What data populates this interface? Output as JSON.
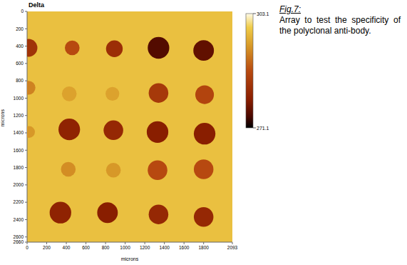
{
  "chart_data": {
    "type": "heatmap",
    "title": "Delta",
    "x_label": "microns",
    "y_label": "microns",
    "xlim": [
      0,
      2093
    ],
    "ylim": [
      0,
      2660
    ],
    "xticks": [
      0,
      200,
      400,
      600,
      800,
      1000,
      1200,
      1400,
      1600,
      1800,
      2093
    ],
    "yticks": [
      0,
      200,
      400,
      600,
      800,
      1000,
      1200,
      1400,
      1600,
      1800,
      2000,
      2200,
      2400,
      2600,
      2660
    ],
    "grid": false,
    "background": 298,
    "x": [
      15,
      460,
      890,
      1340,
      1800,
      15,
      430,
      870,
      1340,
      1810,
      20,
      430,
      880,
      1330,
      1810,
      420,
      880,
      1330,
      1800,
      340,
      820,
      1340,
      1800
    ],
    "y": [
      420,
      420,
      430,
      420,
      450,
      880,
      950,
      950,
      940,
      960,
      1390,
      1360,
      1370,
      1390,
      1410,
      1820,
      1830,
      1830,
      1820,
      2320,
      2320,
      2340,
      2370
    ],
    "radius": [
      90,
      75,
      85,
      110,
      105,
      70,
      75,
      70,
      100,
      95,
      60,
      110,
      100,
      110,
      110,
      75,
      75,
      100,
      100,
      110,
      105,
      100,
      100
    ],
    "values": [
      283,
      287,
      282,
      275,
      276,
      292,
      295,
      295,
      284,
      286,
      294,
      280,
      281,
      279,
      279,
      293,
      294,
      287,
      287,
      280,
      279,
      281,
      281
    ],
    "colorbar": {
      "range": [
        271.1,
        303.1
      ],
      "ticks": [
        271.1,
        303.1
      ]
    }
  },
  "caption": {
    "label": "Fig.7:",
    "text": "Array to test the specificity of the polyclonal anti-body."
  }
}
